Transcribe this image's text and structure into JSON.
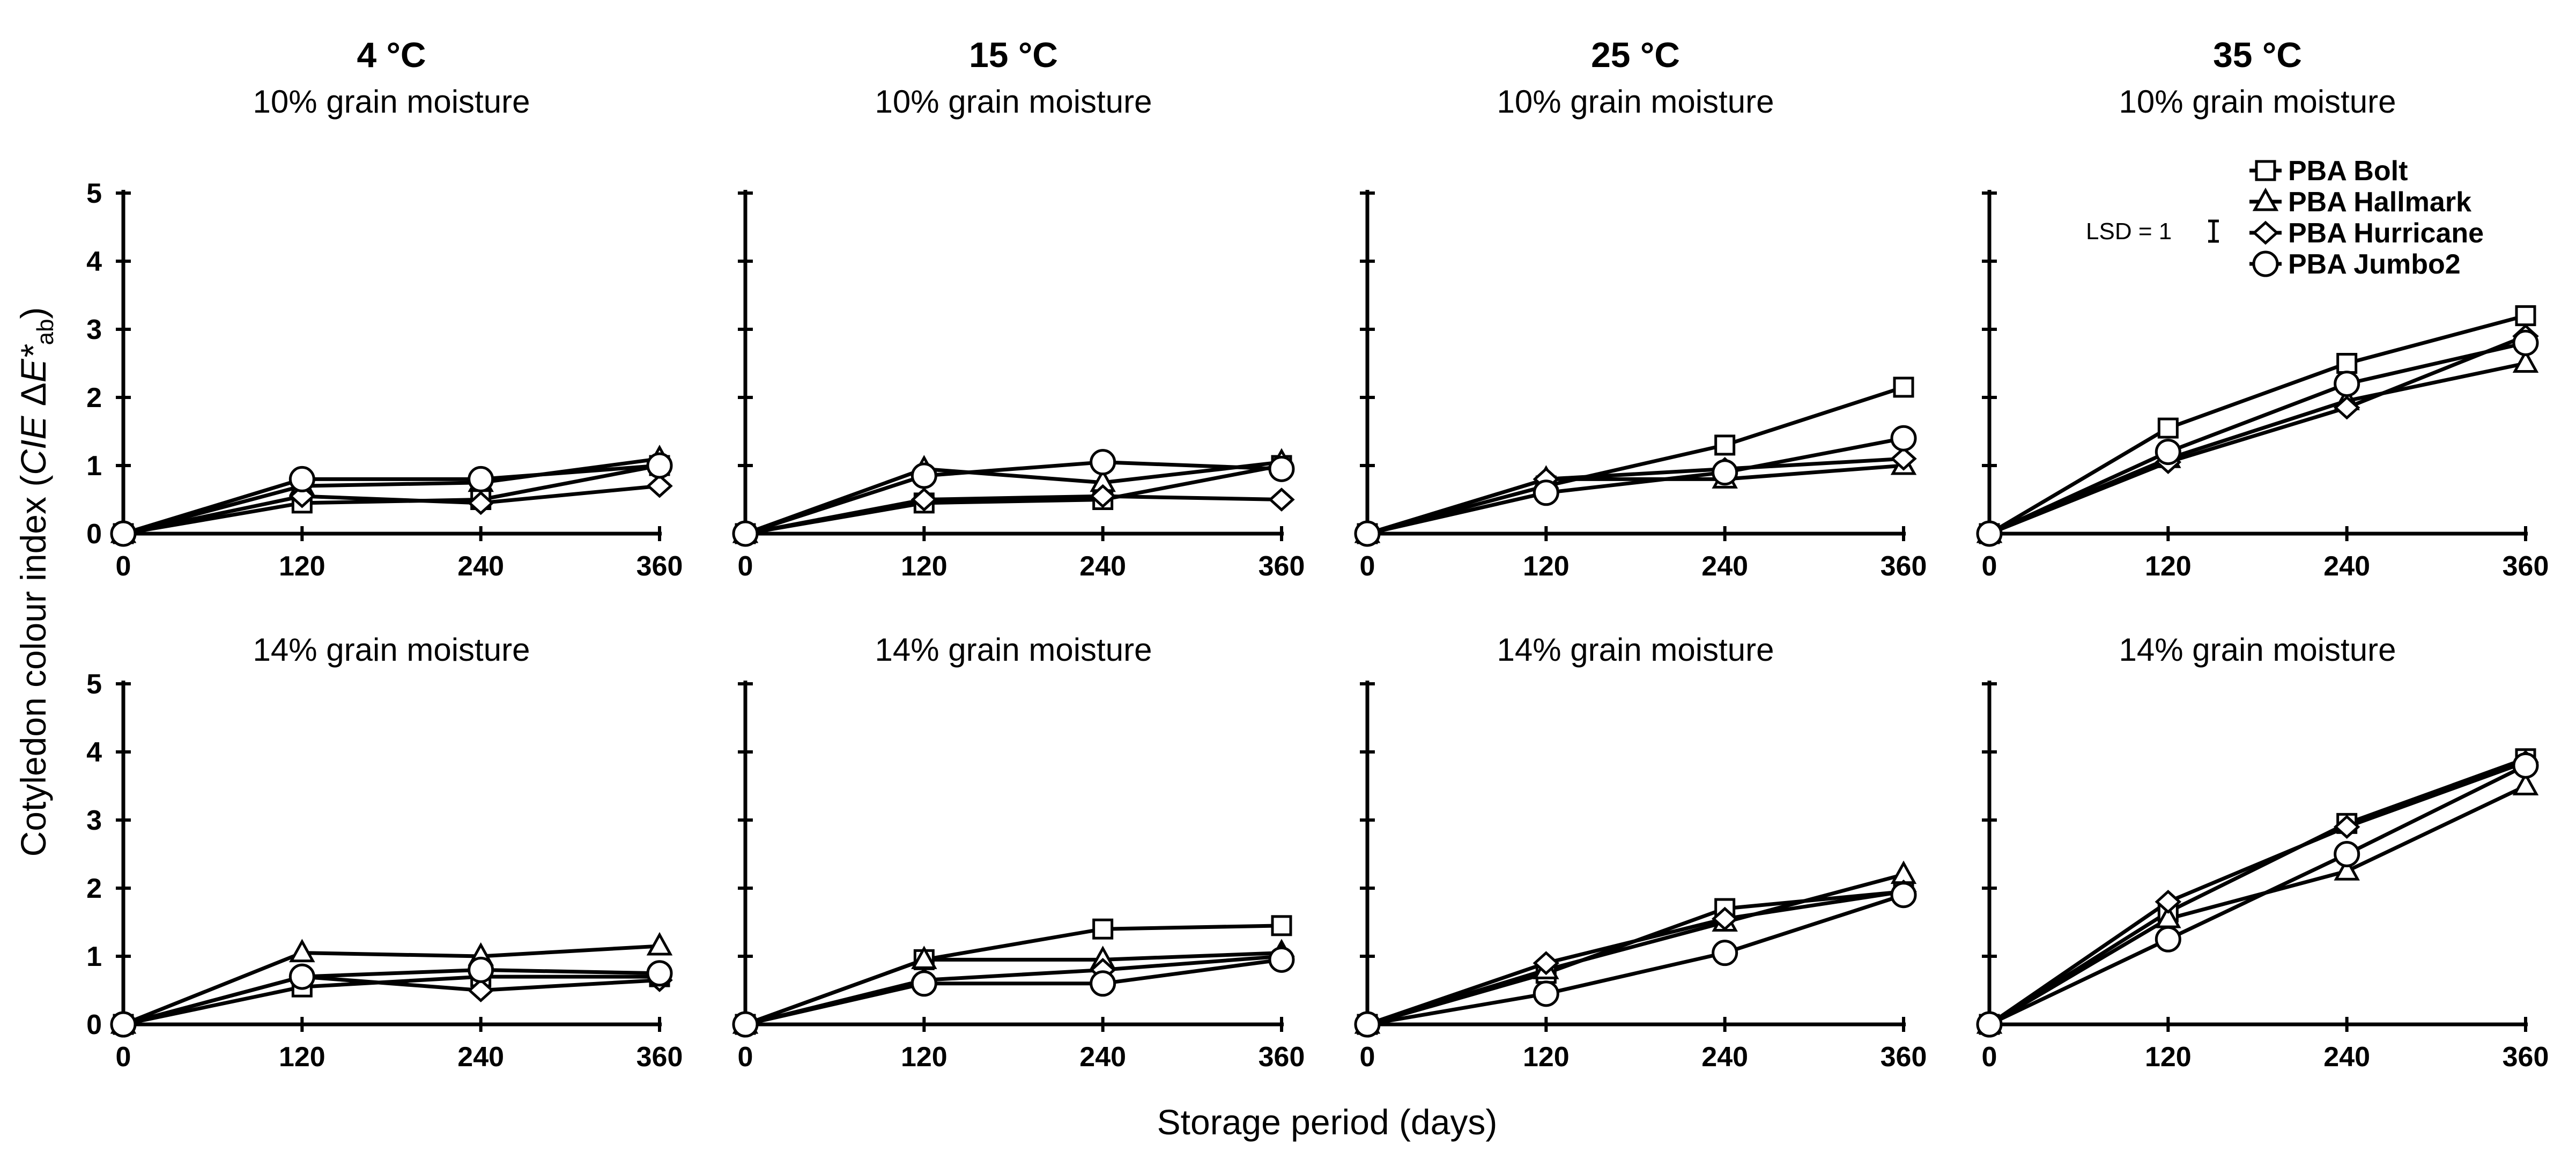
{
  "figure": {
    "ylabel_prefix": "Cotyledon colour index (",
    "ylabel_cie": "CIE",
    "ylabel_delta": " Δ",
    "ylabel_e": "E*",
    "ylabel_sub": "ab",
    "ylabel_suffix": ")",
    "xlabel": "Storage period (days)",
    "lsd_label": "LSD = 1"
  },
  "legend": {
    "items": [
      {
        "name": "PBA Bolt",
        "marker": "square"
      },
      {
        "name": "PBA Hallmark",
        "marker": "triangle"
      },
      {
        "name": "PBA Hurricane",
        "marker": "diamond"
      },
      {
        "name": "PBA Jumbo2",
        "marker": "circle"
      }
    ]
  },
  "chart_data": [
    {
      "type": "line",
      "temperature": "4 °C",
      "moisture": "10% grain moisture",
      "x": [
        0,
        120,
        240,
        360
      ],
      "x_ticks": [
        "0",
        "120",
        "240",
        "360"
      ],
      "y_ticks": [
        "0",
        "1",
        "2",
        "3",
        "4",
        "5"
      ],
      "ylim": [
        0,
        5
      ],
      "series": [
        {
          "name": "PBA Bolt",
          "values": [
            0,
            0.45,
            0.5,
            1.0
          ]
        },
        {
          "name": "PBA Hallmark",
          "values": [
            0,
            0.7,
            0.75,
            1.1
          ]
        },
        {
          "name": "PBA Hurricane",
          "values": [
            0,
            0.55,
            0.45,
            0.7
          ]
        },
        {
          "name": "PBA Jumbo2",
          "values": [
            0,
            0.8,
            0.8,
            1.0
          ]
        }
      ]
    },
    {
      "type": "line",
      "temperature": "15 °C",
      "moisture": "10% grain moisture",
      "x": [
        0,
        120,
        240,
        360
      ],
      "x_ticks": [
        "0",
        "120",
        "240",
        "360"
      ],
      "y_ticks": [
        "0",
        "1",
        "2",
        "3",
        "4",
        "5"
      ],
      "ylim": [
        0,
        5
      ],
      "series": [
        {
          "name": "PBA Bolt",
          "values": [
            0,
            0.45,
            0.5,
            1.0
          ]
        },
        {
          "name": "PBA Hallmark",
          "values": [
            0,
            0.95,
            0.75,
            1.05
          ]
        },
        {
          "name": "PBA Hurricane",
          "values": [
            0,
            0.5,
            0.55,
            0.5
          ]
        },
        {
          "name": "PBA Jumbo2",
          "values": [
            0,
            0.85,
            1.05,
            0.95
          ]
        }
      ]
    },
    {
      "type": "line",
      "temperature": "25 °C",
      "moisture": "10% grain moisture",
      "x": [
        0,
        120,
        240,
        360
      ],
      "x_ticks": [
        "0",
        "120",
        "240",
        "360"
      ],
      "y_ticks": [
        "0",
        "1",
        "2",
        "3",
        "4",
        "5"
      ],
      "ylim": [
        0,
        5
      ],
      "series": [
        {
          "name": "PBA Bolt",
          "values": [
            0,
            0.7,
            1.3,
            2.15
          ]
        },
        {
          "name": "PBA Hallmark",
          "values": [
            0,
            0.8,
            0.8,
            1.0
          ]
        },
        {
          "name": "PBA Hurricane",
          "values": [
            0,
            0.8,
            0.95,
            1.1
          ]
        },
        {
          "name": "PBA Jumbo2",
          "values": [
            0,
            0.6,
            0.9,
            1.4
          ]
        }
      ]
    },
    {
      "type": "line",
      "temperature": "35 °C",
      "moisture": "10% grain moisture",
      "x": [
        0,
        120,
        240,
        360
      ],
      "x_ticks": [
        "0",
        "120",
        "240",
        "360"
      ],
      "y_ticks": [
        "0",
        "1",
        "2",
        "3",
        "4",
        "5"
      ],
      "ylim": [
        0,
        5
      ],
      "series": [
        {
          "name": "PBA Bolt",
          "values": [
            0,
            1.55,
            2.5,
            3.2
          ]
        },
        {
          "name": "PBA Hallmark",
          "values": [
            0,
            1.1,
            1.95,
            2.5
          ]
        },
        {
          "name": "PBA Hurricane",
          "values": [
            0,
            1.05,
            1.85,
            2.9
          ]
        },
        {
          "name": "PBA Jumbo2",
          "values": [
            0,
            1.2,
            2.2,
            2.8
          ]
        }
      ]
    },
    {
      "type": "line",
      "temperature": "4 °C",
      "moisture": "14% grain moisture",
      "x": [
        0,
        120,
        240,
        360
      ],
      "x_ticks": [
        "0",
        "120",
        "240",
        "360"
      ],
      "y_ticks": [
        "0",
        "1",
        "2",
        "3",
        "4",
        "5"
      ],
      "ylim": [
        0,
        5
      ],
      "series": [
        {
          "name": "PBA Bolt",
          "values": [
            0,
            0.55,
            0.7,
            0.7
          ]
        },
        {
          "name": "PBA Hallmark",
          "values": [
            0,
            1.05,
            1.0,
            1.15
          ]
        },
        {
          "name": "PBA Hurricane",
          "values": [
            0,
            0.7,
            0.5,
            0.65
          ]
        },
        {
          "name": "PBA Jumbo2",
          "values": [
            0,
            0.7,
            0.8,
            0.75
          ]
        }
      ]
    },
    {
      "type": "line",
      "temperature": "15 °C",
      "moisture": "14% grain moisture",
      "x": [
        0,
        120,
        240,
        360
      ],
      "x_ticks": [
        "0",
        "120",
        "240",
        "360"
      ],
      "y_ticks": [
        "0",
        "1",
        "2",
        "3",
        "4",
        "5"
      ],
      "ylim": [
        0,
        5
      ],
      "series": [
        {
          "name": "PBA Bolt",
          "values": [
            0,
            0.95,
            1.4,
            1.45
          ]
        },
        {
          "name": "PBA Hallmark",
          "values": [
            0,
            0.95,
            0.95,
            1.05
          ]
        },
        {
          "name": "PBA Hurricane",
          "values": [
            0,
            0.65,
            0.8,
            1.0
          ]
        },
        {
          "name": "PBA Jumbo2",
          "values": [
            0,
            0.6,
            0.6,
            0.95
          ]
        }
      ]
    },
    {
      "type": "line",
      "temperature": "25 °C",
      "moisture": "14% grain moisture",
      "x": [
        0,
        120,
        240,
        360
      ],
      "x_ticks": [
        "0",
        "120",
        "240",
        "360"
      ],
      "y_ticks": [
        "0",
        "1",
        "2",
        "3",
        "4",
        "5"
      ],
      "ylim": [
        0,
        5
      ],
      "series": [
        {
          "name": "PBA Bolt",
          "values": [
            0,
            0.75,
            1.7,
            1.95
          ]
        },
        {
          "name": "PBA Hallmark",
          "values": [
            0,
            0.8,
            1.5,
            2.2
          ]
        },
        {
          "name": "PBA Hurricane",
          "values": [
            0,
            0.9,
            1.55,
            1.95
          ]
        },
        {
          "name": "PBA Jumbo2",
          "values": [
            0,
            0.45,
            1.05,
            1.9
          ]
        }
      ]
    },
    {
      "type": "line",
      "temperature": "35 °C",
      "moisture": "14% grain moisture",
      "x": [
        0,
        120,
        240,
        360
      ],
      "x_ticks": [
        "0",
        "120",
        "240",
        "360"
      ],
      "y_ticks": [
        "0",
        "1",
        "2",
        "3",
        "4",
        "5"
      ],
      "ylim": [
        0,
        5
      ],
      "series": [
        {
          "name": "PBA Bolt",
          "values": [
            0,
            1.65,
            2.95,
            3.9
          ]
        },
        {
          "name": "PBA Hallmark",
          "values": [
            0,
            1.55,
            2.25,
            3.5
          ]
        },
        {
          "name": "PBA Hurricane",
          "values": [
            0,
            1.8,
            2.9,
            3.85
          ]
        },
        {
          "name": "PBA Jumbo2",
          "values": [
            0,
            1.25,
            2.5,
            3.8
          ]
        }
      ]
    }
  ]
}
